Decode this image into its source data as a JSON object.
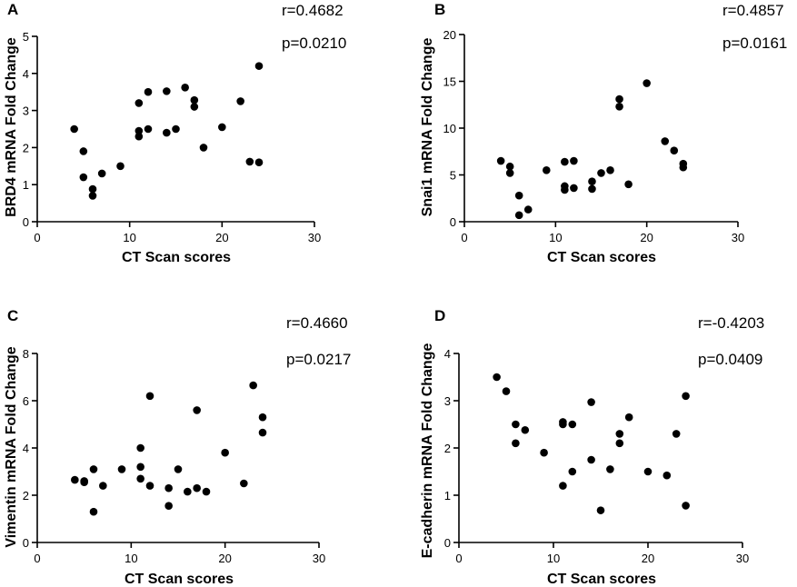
{
  "chart_data": [
    {
      "type": "scatter",
      "panel": "A",
      "xlabel": "CT Scan scores",
      "ylabel": "BRD4 mRNA Fold Change",
      "xlim": [
        0,
        30
      ],
      "ylim": [
        0,
        5
      ],
      "xticks": [
        0,
        10,
        20,
        30
      ],
      "yticks": [
        0,
        1,
        2,
        3,
        4,
        5
      ],
      "r_text": "r=0.4682",
      "p_text": "p=0.0210",
      "points": [
        [
          4,
          2.5
        ],
        [
          5,
          1.9
        ],
        [
          5,
          1.2
        ],
        [
          6,
          0.88
        ],
        [
          6,
          0.7
        ],
        [
          7,
          1.3
        ],
        [
          9,
          1.5
        ],
        [
          11,
          2.3
        ],
        [
          11,
          2.45
        ],
        [
          11,
          3.2
        ],
        [
          12,
          3.5
        ],
        [
          12,
          2.5
        ],
        [
          14,
          3.52
        ],
        [
          14,
          2.4
        ],
        [
          15,
          2.5
        ],
        [
          16,
          3.62
        ],
        [
          17,
          3.28
        ],
        [
          17,
          3.1
        ],
        [
          18,
          2.0
        ],
        [
          20,
          2.55
        ],
        [
          22,
          3.25
        ],
        [
          23,
          1.62
        ],
        [
          24,
          4.2
        ],
        [
          24,
          1.6
        ]
      ]
    },
    {
      "type": "scatter",
      "panel": "B",
      "xlabel": "CT Scan scores",
      "ylabel": "Snai1 mRNA Fold Change",
      "xlim": [
        0,
        30
      ],
      "ylim": [
        0,
        20
      ],
      "xticks": [
        0,
        10,
        20,
        30
      ],
      "yticks": [
        0,
        5,
        10,
        15,
        20
      ],
      "r_text": "r=0.4857",
      "p_text": "p=0.0161",
      "points": [
        [
          4,
          6.5
        ],
        [
          5,
          5.9
        ],
        [
          5,
          5.2
        ],
        [
          6,
          2.8
        ],
        [
          6,
          0.7
        ],
        [
          7,
          1.3
        ],
        [
          9,
          5.5
        ],
        [
          11,
          6.4
        ],
        [
          11,
          3.8
        ],
        [
          11,
          3.4
        ],
        [
          12,
          6.5
        ],
        [
          12,
          3.6
        ],
        [
          14,
          4.3
        ],
        [
          14,
          3.5
        ],
        [
          15,
          5.2
        ],
        [
          16,
          5.5
        ],
        [
          17,
          13.1
        ],
        [
          17,
          12.3
        ],
        [
          18,
          4.0
        ],
        [
          20,
          14.8
        ],
        [
          22,
          8.6
        ],
        [
          23,
          7.6
        ],
        [
          24,
          6.2
        ],
        [
          24,
          5.8
        ]
      ]
    },
    {
      "type": "scatter",
      "panel": "C",
      "xlabel": "CT Scan scores",
      "ylabel": "Vimentin mRNA Fold Change",
      "xlim": [
        0,
        30
      ],
      "ylim": [
        0,
        8
      ],
      "xticks": [
        0,
        10,
        20,
        30
      ],
      "yticks": [
        0,
        2,
        4,
        6,
        8
      ],
      "r_text": "r=0.4660",
      "p_text": "p=0.0217",
      "points": [
        [
          4,
          2.65
        ],
        [
          5,
          2.6
        ],
        [
          5,
          2.55
        ],
        [
          6,
          3.1
        ],
        [
          6,
          1.3
        ],
        [
          7,
          2.4
        ],
        [
          9,
          3.1
        ],
        [
          11,
          4.0
        ],
        [
          11,
          3.2
        ],
        [
          11,
          2.7
        ],
        [
          12,
          6.2
        ],
        [
          12,
          2.4
        ],
        [
          14,
          2.3
        ],
        [
          14,
          1.55
        ],
        [
          15,
          3.1
        ],
        [
          16,
          2.15
        ],
        [
          17,
          5.6
        ],
        [
          17,
          2.3
        ],
        [
          18,
          2.15
        ],
        [
          20,
          3.8
        ],
        [
          22,
          2.5
        ],
        [
          23,
          6.65
        ],
        [
          24,
          5.3
        ],
        [
          24,
          4.65
        ]
      ]
    },
    {
      "type": "scatter",
      "panel": "D",
      "xlabel": "CT Scan scores",
      "ylabel": "E-cadherin mRNA Fold Change",
      "xlim": [
        0,
        30
      ],
      "ylim": [
        0,
        4
      ],
      "xticks": [
        0,
        10,
        20,
        30
      ],
      "yticks": [
        0,
        1,
        2,
        3,
        4
      ],
      "r_text": "r=-0.4203",
      "p_text": "p=0.0409",
      "points": [
        [
          4,
          3.5
        ],
        [
          5,
          3.2
        ],
        [
          6,
          2.5
        ],
        [
          6,
          2.1
        ],
        [
          7,
          2.38
        ],
        [
          9,
          1.9
        ],
        [
          11,
          2.55
        ],
        [
          11,
          2.5
        ],
        [
          11,
          1.2
        ],
        [
          12,
          2.5
        ],
        [
          12,
          1.5
        ],
        [
          14,
          2.97
        ],
        [
          14,
          1.75
        ],
        [
          15,
          0.68
        ],
        [
          16,
          1.55
        ],
        [
          17,
          2.3
        ],
        [
          17,
          2.1
        ],
        [
          18,
          2.65
        ],
        [
          20,
          1.5
        ],
        [
          22,
          1.42
        ],
        [
          23,
          2.3
        ],
        [
          24,
          3.1
        ],
        [
          24,
          0.78
        ]
      ]
    }
  ]
}
